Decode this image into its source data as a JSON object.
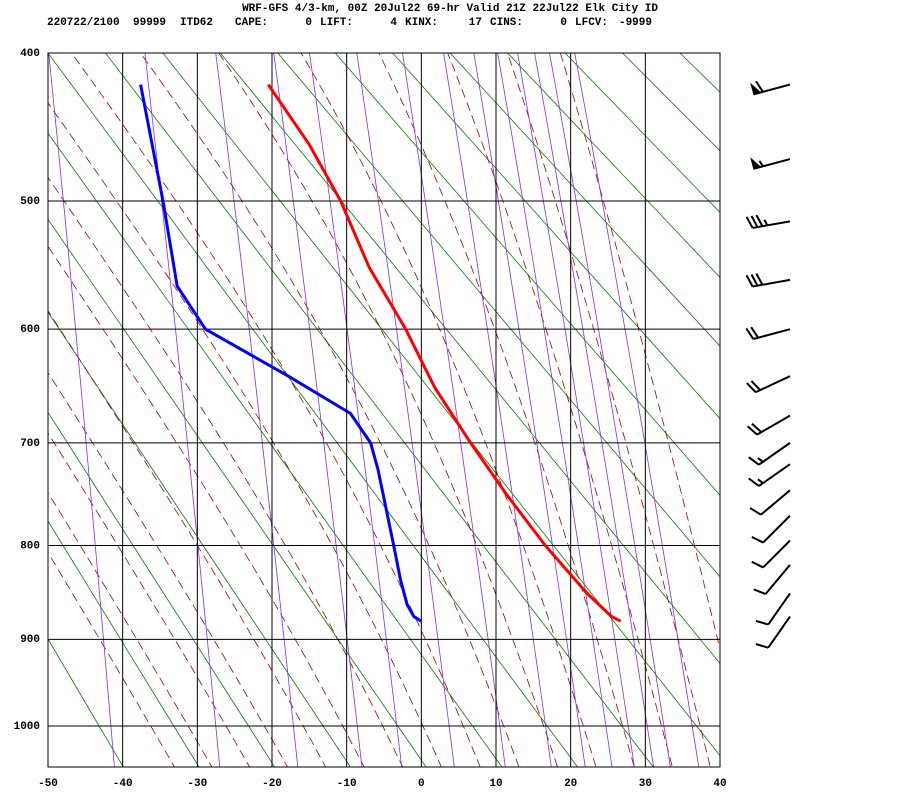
{
  "chart_data": {
    "type": "sounding",
    "title": "WRF-GFS 4/3-km, 00Z 20Jul22 69-hr Valid 21Z 22Jul22 Elk City ID",
    "run": "220722/2100",
    "station_number": "99999",
    "station": "ITD62",
    "indices": [
      {
        "label": "CAPE:",
        "value": 0
      },
      {
        "label": "LIFT:",
        "value": 4
      },
      {
        "label": "KINX:",
        "value": 17
      },
      {
        "label": "CINS:",
        "value": 0
      },
      {
        "label": "LFCV:",
        "value": -9999
      }
    ],
    "xlim": [
      -50,
      40
    ],
    "xticks": [
      -50,
      -40,
      -30,
      -20,
      -10,
      0,
      10,
      20,
      30,
      40
    ],
    "ylim": [
      400,
      1050
    ],
    "yticks": [
      400,
      500,
      600,
      700,
      800,
      900,
      1000
    ],
    "series": [
      {
        "color": "#ff0000",
        "pressure": [
          420,
          460,
          500,
          550,
          600,
          650,
          700,
          750,
          800,
          850,
          875,
          880
        ],
        "values": [
          -20.5,
          -15,
          -10.8,
          -7,
          -2.1,
          1.8,
          6.6,
          11.5,
          16.6,
          22.2,
          25.5,
          26.7
        ]
      },
      {
        "color": "#0000ff",
        "pressure": [
          420,
          500,
          565,
          600,
          640,
          673,
          700,
          725,
          800,
          835,
          862,
          875,
          880
        ],
        "values": [
          -37.6,
          -34.6,
          -32.7,
          -28.9,
          -17.8,
          -9.5,
          -6.8,
          -5.8,
          -3.7,
          -2.8,
          -1.9,
          -1,
          0
        ]
      }
    ],
    "wind_barbs": [
      {
        "pressure": 420,
        "speed": 60,
        "direction": 255
      },
      {
        "pressure": 470,
        "speed": 55,
        "direction": 255
      },
      {
        "pressure": 515,
        "speed": 35,
        "direction": 260
      },
      {
        "pressure": 560,
        "speed": 30,
        "direction": 260
      },
      {
        "pressure": 600,
        "speed": 20,
        "direction": 255
      },
      {
        "pressure": 640,
        "speed": 20,
        "direction": 245
      },
      {
        "pressure": 675,
        "speed": 20,
        "direction": 240
      },
      {
        "pressure": 700,
        "speed": 15,
        "direction": 235
      },
      {
        "pressure": 720,
        "speed": 15,
        "direction": 235
      },
      {
        "pressure": 745,
        "speed": 10,
        "direction": 230
      },
      {
        "pressure": 770,
        "speed": 10,
        "direction": 225
      },
      {
        "pressure": 795,
        "speed": 10,
        "direction": 225
      },
      {
        "pressure": 820,
        "speed": 10,
        "direction": 220
      },
      {
        "pressure": 850,
        "speed": 10,
        "direction": 215
      },
      {
        "pressure": 875,
        "speed": 10,
        "direction": 215
      }
    ]
  }
}
